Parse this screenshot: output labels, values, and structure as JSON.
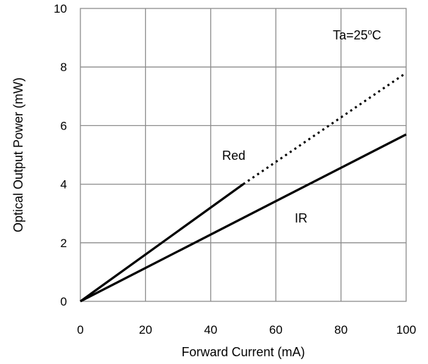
{
  "chart_data": {
    "type": "line",
    "title": "",
    "xlabel": "Forward Current  (mA)",
    "ylabel": "Optical Output Power  (mW)",
    "xlim": [
      0,
      100
    ],
    "ylim": [
      0,
      10
    ],
    "xticks": [
      0,
      20,
      40,
      60,
      80,
      100
    ],
    "yticks": [
      0,
      2,
      4,
      6,
      8,
      10
    ],
    "grid": true,
    "condition": {
      "label": "Ta=25",
      "sup": "o",
      "unit": "C"
    },
    "series": [
      {
        "name": "Red",
        "style": "solid",
        "x": [
          0,
          50
        ],
        "y": [
          0,
          4.0
        ]
      },
      {
        "name": "Red",
        "style": "dotted",
        "x": [
          50,
          100
        ],
        "y": [
          4.0,
          7.8
        ]
      },
      {
        "name": "IR",
        "style": "solid",
        "x": [
          0,
          100
        ],
        "y": [
          0,
          5.7
        ]
      }
    ],
    "series_labels": [
      "Red",
      "IR"
    ],
    "line_color": "#000000",
    "grid_color": "#8c8c8c"
  }
}
